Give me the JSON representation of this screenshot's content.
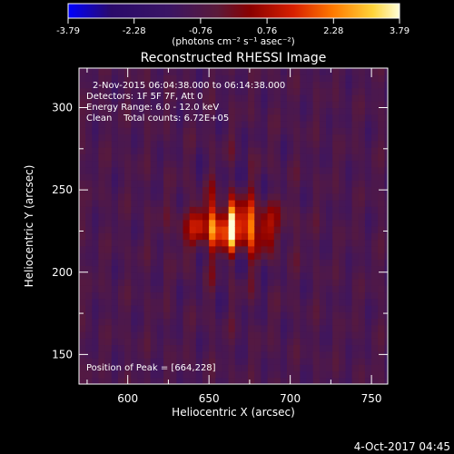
{
  "chart_data": {
    "type": "heatmap",
    "title": "Reconstructed RHESSI Image",
    "xlabel": "Heliocentric X (arcsec)",
    "ylabel": "Heliocentric Y (arcsec)",
    "xlim": [
      570,
      760
    ],
    "ylim": [
      132,
      324
    ],
    "xticks": [
      600,
      650,
      700,
      750
    ],
    "yticks": [
      150,
      200,
      250,
      300
    ],
    "colorbar": {
      "label": "(photons cm⁻² s⁻¹ asec⁻²)",
      "min": -3.79,
      "max": 3.79,
      "ticks": [
        "-3.79",
        "-2.28",
        "-0.76",
        "0.76",
        "2.28",
        "3.79"
      ]
    },
    "info_lines": [
      "2-Nov-2015 06:04:38.000 to 06:14:38.000",
      "Detectors: 1F 5F 7F, Att 0",
      "Energy Range: 6.0 - 12.0 keV",
      "Clean    Total counts: 6.72E+05"
    ],
    "peak_label": "Position of Peak = [664,228]",
    "peak": {
      "x": 664,
      "y": 228,
      "value": 3.79
    },
    "grid": false
  },
  "timestamp": "4-Oct-2017 04:45",
  "colors": {
    "background": "#000000",
    "text": "#ffffff",
    "colormap": [
      "#0000ff",
      "#2a0a6a",
      "#3a1565",
      "#5a1a3a",
      "#8a0000",
      "#d82000",
      "#ff7a00",
      "#ffd43a",
      "#ffffd8"
    ]
  }
}
